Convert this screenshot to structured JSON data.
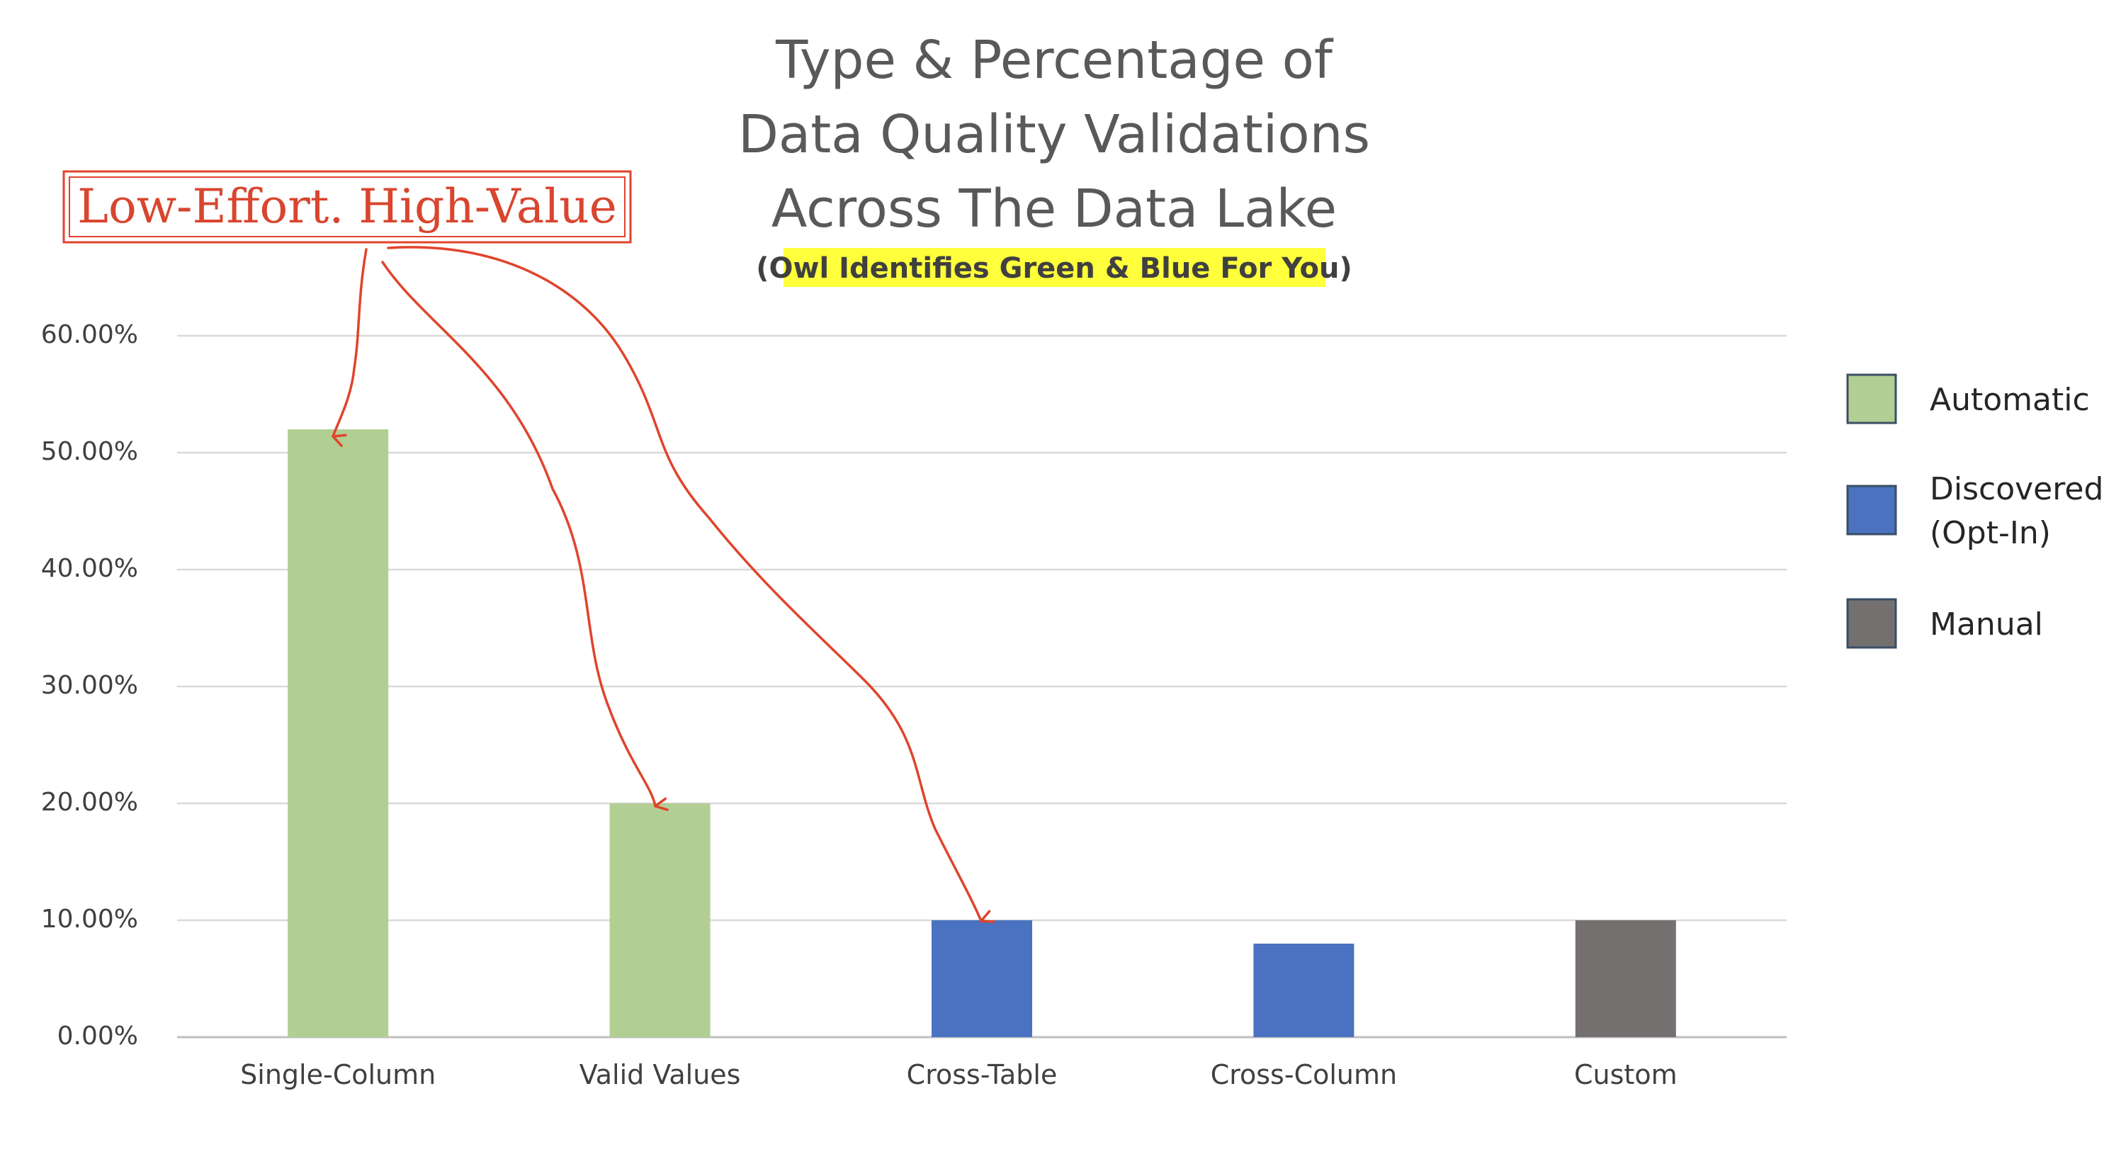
{
  "chart_data": {
    "type": "bar",
    "title_lines": [
      "Type & Percentage of",
      "Data Quality Validations",
      "Across The Data Lake"
    ],
    "subtitle": "(Owl Identifies Green & Blue For You)",
    "categories": [
      "Single-Column",
      "Valid Values",
      "Cross-Table",
      "Cross-Column",
      "Custom"
    ],
    "values": [
      52,
      20,
      10,
      8,
      10
    ],
    "bar_series": [
      "Automatic",
      "Automatic",
      "Discovered (Opt-In)",
      "Discovered (Opt-In)",
      "Manual"
    ],
    "y_ticks": [
      "0.00%",
      "10.00%",
      "20.00%",
      "30.00%",
      "40.00%",
      "50.00%",
      "60.00%"
    ],
    "ylim": [
      0,
      60
    ],
    "grid": true,
    "legend_position": "right",
    "legend": [
      {
        "name": "Automatic",
        "lines": [
          "Automatic"
        ],
        "color": "#b1cf93"
      },
      {
        "name": "Discovered (Opt-In)",
        "lines": [
          "Discovered",
          "(Opt-In)"
        ],
        "color": "#4a72c0"
      },
      {
        "name": "Manual",
        "lines": [
          "Manual"
        ],
        "color": "#747070"
      }
    ],
    "annotation": {
      "text": "Low-Effort. High-Value",
      "targets": [
        "Single-Column",
        "Valid Values",
        "Cross-Table"
      ]
    },
    "colors": {
      "subtitle_highlight": "#ffff3b",
      "annotation": "#e0442c"
    }
  }
}
